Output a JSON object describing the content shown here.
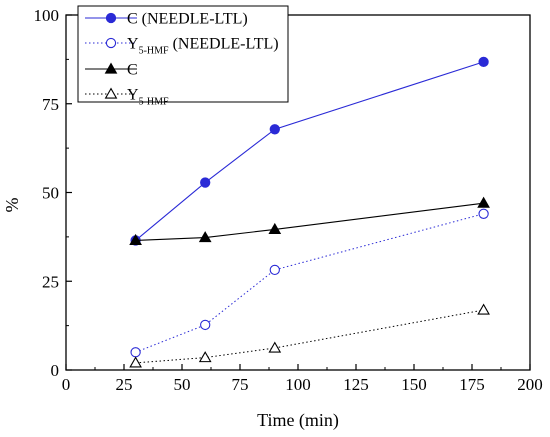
{
  "chart_data": {
    "type": "line",
    "xlabel": "Time (min)",
    "ylabel": "%",
    "xlim": [
      0,
      200
    ],
    "ylim": [
      0,
      100
    ],
    "x_ticks": [
      0,
      25,
      50,
      75,
      100,
      125,
      150,
      175,
      200
    ],
    "y_ticks": [
      0,
      25,
      50,
      75,
      100
    ],
    "grid": false,
    "legend_position": "top-left",
    "series": [
      {
        "name": "C (NEEDLE-LTL)",
        "color": "#2a2ad6",
        "line_style": "solid",
        "marker": "filled-circle",
        "x": [
          30,
          60,
          90,
          180
        ],
        "y": [
          36.5,
          52.8,
          67.8,
          86.8
        ]
      },
      {
        "name": "Y5-HMF (NEEDLE-LTL)",
        "name_main": "Y",
        "name_sub": "5-HMF",
        "name_suffix": " (NEEDLE-LTL)",
        "color": "#2a2ad6",
        "line_style": "dotted",
        "marker": "open-circle",
        "x": [
          30,
          60,
          90,
          180
        ],
        "y": [
          5.0,
          12.7,
          28.2,
          44.0
        ]
      },
      {
        "name": "C",
        "color": "#000000",
        "line_style": "solid",
        "marker": "filled-triangle",
        "x": [
          30,
          60,
          90,
          180
        ],
        "y": [
          36.5,
          37.3,
          39.6,
          47.0
        ]
      },
      {
        "name": "Y5-HMF",
        "name_main": "Y",
        "name_sub": "5-HMF",
        "name_suffix": "",
        "color": "#000000",
        "line_style": "dotted",
        "marker": "open-triangle",
        "x": [
          30,
          60,
          90,
          180
        ],
        "y": [
          2.0,
          3.5,
          6.2,
          16.9
        ]
      }
    ]
  }
}
